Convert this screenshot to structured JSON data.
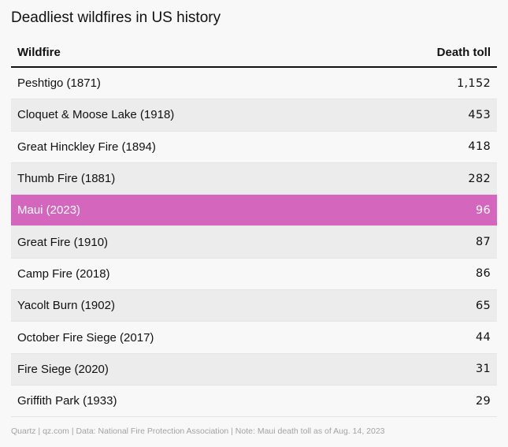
{
  "chart_data": {
    "type": "table",
    "title": "Deadliest wildfires in US history",
    "columns": [
      "Wildfire",
      "Death toll"
    ],
    "rows": [
      {
        "wildfire": "Peshtigo (1871)",
        "deaths": "1,152",
        "value": 1152
      },
      {
        "wildfire": "Cloquet & Moose Lake (1918)",
        "deaths": "453",
        "value": 453
      },
      {
        "wildfire": "Great Hinckley Fire (1894)",
        "deaths": "418",
        "value": 418
      },
      {
        "wildfire": "Thumb Fire (1881)",
        "deaths": "282",
        "value": 282
      },
      {
        "wildfire": "Maui (2023)",
        "deaths": "96",
        "value": 96,
        "highlight": true
      },
      {
        "wildfire": "Great Fire (1910)",
        "deaths": "87",
        "value": 87
      },
      {
        "wildfire": "Camp Fire (2018)",
        "deaths": "86",
        "value": 86
      },
      {
        "wildfire": "Yacolt Burn (1902)",
        "deaths": "65",
        "value": 65
      },
      {
        "wildfire": "October Fire Siege (2017)",
        "deaths": "44",
        "value": 44
      },
      {
        "wildfire": "Fire Siege (2020)",
        "deaths": "31",
        "value": 31
      },
      {
        "wildfire": "Griffith Park (1933)",
        "deaths": "29",
        "value": 29
      }
    ],
    "highlight_color": "#d466bd"
  },
  "footer": "Quartz | qz.com | Data: National Fire Protection Association | Note: Maui death toll as of Aug. 14, 2023"
}
